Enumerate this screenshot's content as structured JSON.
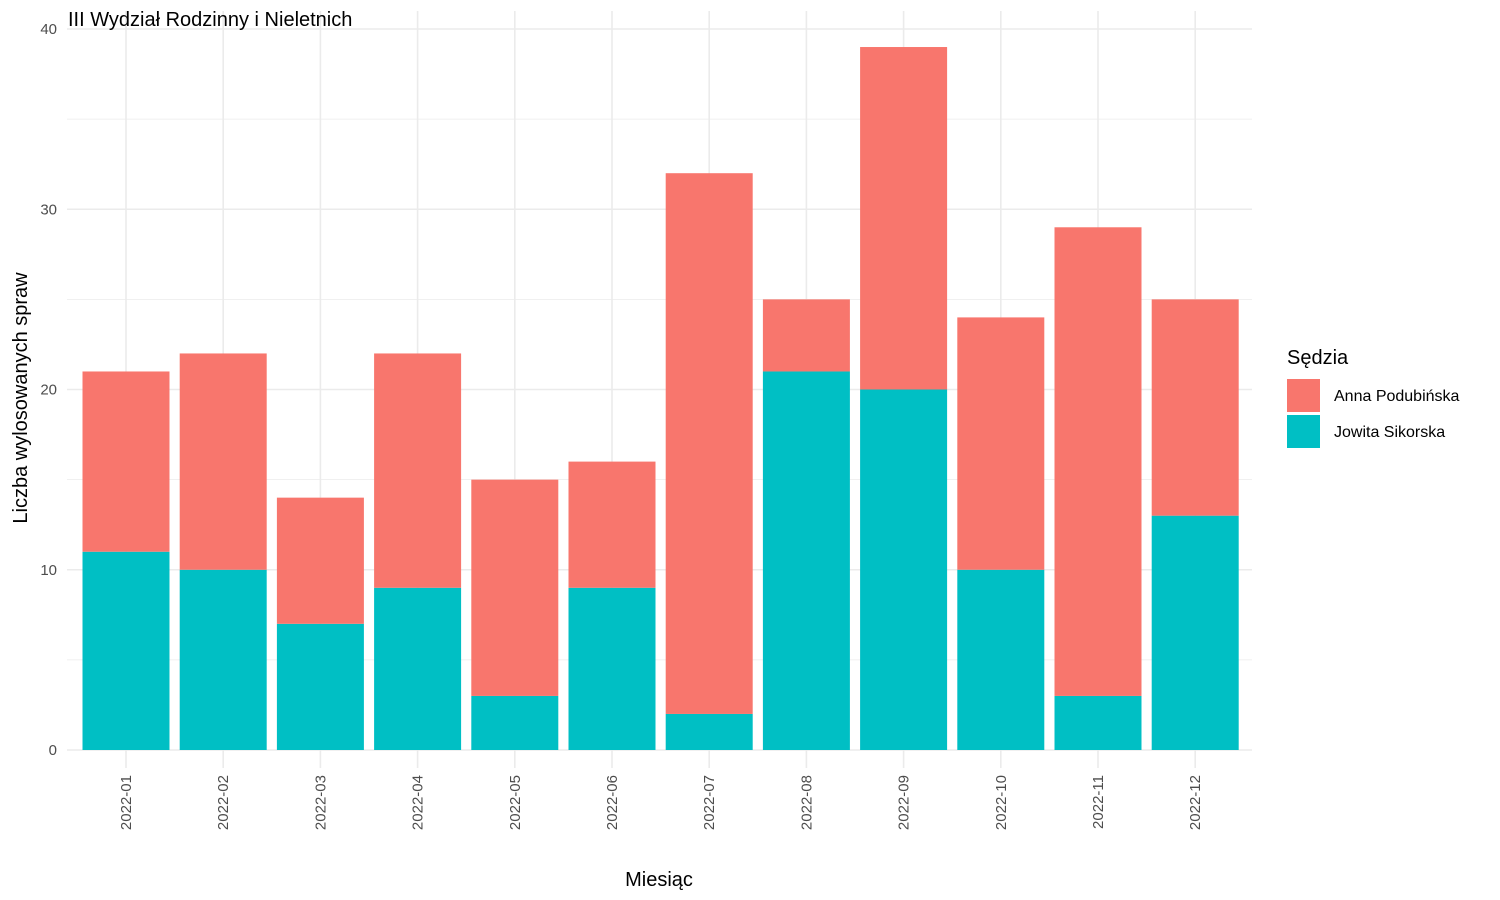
{
  "chart_data": {
    "type": "bar",
    "stacked": true,
    "title": "III Wydział Rodzinny i Nieletnich",
    "xlabel": "Miesiąc",
    "ylabel": "Liczba wylosowanych spraw",
    "categories": [
      "2022-01",
      "2022-02",
      "2022-03",
      "2022-04",
      "2022-05",
      "2022-06",
      "2022-07",
      "2022-08",
      "2022-09",
      "2022-10",
      "2022-11",
      "2022-12"
    ],
    "series": [
      {
        "name": "Jowita Sikorska",
        "color": "#00BFC4",
        "values": [
          11,
          10,
          7,
          9,
          3,
          9,
          2,
          21,
          20,
          10,
          3,
          13
        ]
      },
      {
        "name": "Anna Podubińska",
        "color": "#F8766D",
        "values": [
          10,
          12,
          7,
          13,
          12,
          7,
          30,
          4,
          19,
          14,
          26,
          12
        ]
      }
    ],
    "ylim": [
      0,
      40
    ],
    "yticks": [
      0,
      10,
      20,
      30,
      40
    ],
    "grid": true,
    "legend": {
      "title": "Sędzia",
      "position": "right",
      "entries": [
        {
          "label": "Anna Podubińska",
          "color": "#F8766D"
        },
        {
          "label": "Jowita Sikorska",
          "color": "#00BFC4"
        }
      ]
    }
  }
}
